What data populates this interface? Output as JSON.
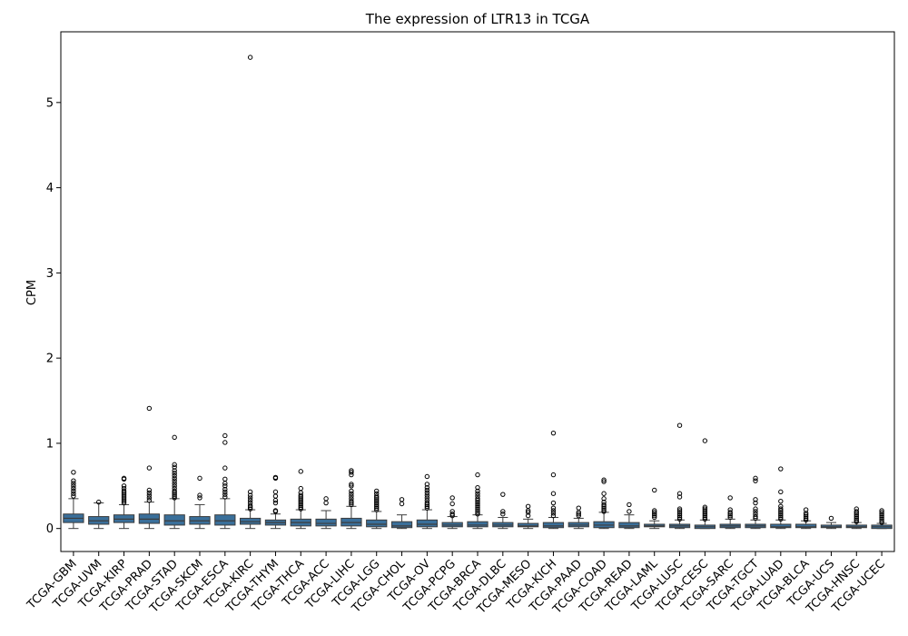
{
  "chart_data": {
    "type": "box",
    "title": "The expression of LTR13 in TCGA",
    "xlabel": "",
    "ylabel": "CPM",
    "ylim": [
      -0.27,
      5.83
    ],
    "yticks": [
      0,
      1,
      2,
      3,
      4,
      5
    ],
    "grid": false,
    "colors": {
      "box_fill": "#3a6f9a",
      "box_edge": "#3d3d3d",
      "outlier": "#000000"
    },
    "categories": [
      "TCGA-GBM",
      "TCGA-UVM",
      "TCGA-KIRP",
      "TCGA-PRAD",
      "TCGA-STAD",
      "TCGA-SKCM",
      "TCGA-ESCA",
      "TCGA-KIRC",
      "TCGA-THYM",
      "TCGA-THCA",
      "TCGA-ACC",
      "TCGA-LIHC",
      "TCGA-LGG",
      "TCGA-CHOL",
      "TCGA-OV",
      "TCGA-PCPG",
      "TCGA-BRCA",
      "TCGA-DLBC",
      "TCGA-MESO",
      "TCGA-KICH",
      "TCGA-PAAD",
      "TCGA-COAD",
      "TCGA-READ",
      "TCGA-LAML",
      "TCGA-LUSC",
      "TCGA-CESC",
      "TCGA-SARC",
      "TCGA-TGCT",
      "TCGA-LUAD",
      "TCGA-BLCA",
      "TCGA-UCS",
      "TCGA-HNSC",
      "TCGA-UCEC"
    ],
    "boxes": [
      {
        "whisker_low": 0.0,
        "q1": 0.07,
        "median": 0.12,
        "q3": 0.17,
        "whisker_high": 0.35,
        "outliers": [
          0.38,
          0.41,
          0.44,
          0.47,
          0.5,
          0.53,
          0.56,
          0.66
        ]
      },
      {
        "whisker_low": 0.0,
        "q1": 0.05,
        "median": 0.09,
        "q3": 0.14,
        "whisker_high": 0.3,
        "outliers": [
          0.31
        ]
      },
      {
        "whisker_low": 0.0,
        "q1": 0.07,
        "median": 0.11,
        "q3": 0.16,
        "whisker_high": 0.28,
        "outliers": [
          0.3,
          0.32,
          0.34,
          0.36,
          0.38,
          0.4,
          0.42,
          0.44,
          0.47,
          0.5,
          0.58,
          0.59
        ]
      },
      {
        "whisker_low": 0.0,
        "q1": 0.06,
        "median": 0.11,
        "q3": 0.17,
        "whisker_high": 0.31,
        "outliers": [
          0.33,
          0.36,
          0.39,
          0.42,
          0.45,
          0.71,
          1.41
        ]
      },
      {
        "whisker_low": 0.0,
        "q1": 0.04,
        "median": 0.09,
        "q3": 0.16,
        "whisker_high": 0.35,
        "outliers": [
          0.36,
          0.38,
          0.4,
          0.42,
          0.44,
          0.47,
          0.5,
          0.53,
          0.56,
          0.59,
          0.62,
          0.65,
          0.68,
          0.72,
          0.75,
          1.07
        ]
      },
      {
        "whisker_low": 0.0,
        "q1": 0.05,
        "median": 0.09,
        "q3": 0.14,
        "whisker_high": 0.28,
        "outliers": [
          0.36,
          0.39,
          0.59
        ]
      },
      {
        "whisker_low": 0.0,
        "q1": 0.04,
        "median": 0.09,
        "q3": 0.16,
        "whisker_high": 0.35,
        "outliers": [
          0.37,
          0.4,
          0.43,
          0.46,
          0.5,
          0.53,
          0.58,
          0.71,
          1.01,
          1.09
        ]
      },
      {
        "whisker_low": 0.0,
        "q1": 0.05,
        "median": 0.08,
        "q3": 0.12,
        "whisker_high": 0.22,
        "outliers": [
          0.23,
          0.25,
          0.27,
          0.3,
          0.33,
          0.36,
          0.39,
          0.43,
          5.53
        ]
      },
      {
        "whisker_low": 0.0,
        "q1": 0.04,
        "median": 0.07,
        "q3": 0.1,
        "whisker_high": 0.17,
        "outliers": [
          0.2,
          0.21,
          0.3,
          0.33,
          0.38,
          0.43,
          0.59,
          0.6
        ]
      },
      {
        "whisker_low": 0.0,
        "q1": 0.03,
        "median": 0.07,
        "q3": 0.11,
        "whisker_high": 0.22,
        "outliers": [
          0.23,
          0.25,
          0.27,
          0.29,
          0.31,
          0.33,
          0.35,
          0.37,
          0.39,
          0.42,
          0.47,
          0.67
        ]
      },
      {
        "whisker_low": 0.0,
        "q1": 0.03,
        "median": 0.06,
        "q3": 0.11,
        "whisker_high": 0.21,
        "outliers": [
          0.3,
          0.35
        ]
      },
      {
        "whisker_low": 0.0,
        "q1": 0.03,
        "median": 0.07,
        "q3": 0.12,
        "whisker_high": 0.26,
        "outliers": [
          0.28,
          0.3,
          0.32,
          0.35,
          0.38,
          0.41,
          0.44,
          0.5,
          0.52,
          0.63,
          0.66,
          0.68
        ]
      },
      {
        "whisker_low": 0.0,
        "q1": 0.02,
        "median": 0.05,
        "q3": 0.1,
        "whisker_high": 0.2,
        "outliers": [
          0.22,
          0.24,
          0.26,
          0.28,
          0.3,
          0.32,
          0.34,
          0.36,
          0.38,
          0.41,
          0.44
        ]
      },
      {
        "whisker_low": 0.0,
        "q1": 0.01,
        "median": 0.03,
        "q3": 0.08,
        "whisker_high": 0.16,
        "outliers": [
          0.29,
          0.34
        ]
      },
      {
        "whisker_low": 0.0,
        "q1": 0.02,
        "median": 0.05,
        "q3": 0.1,
        "whisker_high": 0.22,
        "outliers": [
          0.24,
          0.26,
          0.28,
          0.3,
          0.33,
          0.36,
          0.39,
          0.42,
          0.45,
          0.48,
          0.52,
          0.61
        ]
      },
      {
        "whisker_low": 0.0,
        "q1": 0.02,
        "median": 0.04,
        "q3": 0.07,
        "whisker_high": 0.14,
        "outliers": [
          0.15,
          0.17,
          0.2,
          0.29,
          0.36
        ]
      },
      {
        "whisker_low": 0.0,
        "q1": 0.02,
        "median": 0.04,
        "q3": 0.08,
        "whisker_high": 0.16,
        "outliers": [
          0.17,
          0.19,
          0.21,
          0.23,
          0.25,
          0.27,
          0.29,
          0.31,
          0.33,
          0.35,
          0.38,
          0.41,
          0.44,
          0.48,
          0.63
        ]
      },
      {
        "whisker_low": 0.0,
        "q1": 0.02,
        "median": 0.04,
        "q3": 0.07,
        "whisker_high": 0.13,
        "outliers": [
          0.17,
          0.2,
          0.4
        ]
      },
      {
        "whisker_low": 0.0,
        "q1": 0.02,
        "median": 0.03,
        "q3": 0.06,
        "whisker_high": 0.11,
        "outliers": [
          0.15,
          0.19,
          0.21,
          0.26
        ]
      },
      {
        "whisker_low": 0.0,
        "q1": 0.01,
        "median": 0.03,
        "q3": 0.07,
        "whisker_high": 0.13,
        "outliers": [
          0.15,
          0.18,
          0.21,
          0.24,
          0.3,
          0.41,
          0.63,
          1.12
        ]
      },
      {
        "whisker_low": 0.0,
        "q1": 0.02,
        "median": 0.04,
        "q3": 0.07,
        "whisker_high": 0.12,
        "outliers": [
          0.15,
          0.17,
          0.19,
          0.24
        ]
      },
      {
        "whisker_low": 0.0,
        "q1": 0.01,
        "median": 0.04,
        "q3": 0.08,
        "whisker_high": 0.19,
        "outliers": [
          0.2,
          0.22,
          0.24,
          0.26,
          0.28,
          0.31,
          0.35,
          0.41,
          0.55,
          0.57
        ]
      },
      {
        "whisker_low": 0.0,
        "q1": 0.01,
        "median": 0.03,
        "q3": 0.07,
        "whisker_high": 0.16,
        "outliers": [
          0.2,
          0.28
        ]
      },
      {
        "whisker_low": 0.0,
        "q1": 0.02,
        "median": 0.03,
        "q3": 0.05,
        "whisker_high": 0.09,
        "outliers": [
          0.13,
          0.15,
          0.17,
          0.19,
          0.21,
          0.45
        ]
      },
      {
        "whisker_low": 0.0,
        "q1": 0.01,
        "median": 0.03,
        "q3": 0.05,
        "whisker_high": 0.1,
        "outliers": [
          0.11,
          0.13,
          0.15,
          0.17,
          0.19,
          0.21,
          0.23,
          0.37,
          0.41,
          1.21
        ]
      },
      {
        "whisker_low": 0.0,
        "q1": 0.0,
        "median": 0.02,
        "q3": 0.04,
        "whisker_high": 0.1,
        "outliers": [
          0.11,
          0.13,
          0.15,
          0.17,
          0.19,
          0.21,
          0.23,
          0.25,
          1.03
        ]
      },
      {
        "whisker_low": 0.0,
        "q1": 0.01,
        "median": 0.03,
        "q3": 0.05,
        "whisker_high": 0.11,
        "outliers": [
          0.13,
          0.15,
          0.17,
          0.19,
          0.22,
          0.36
        ]
      },
      {
        "whisker_low": 0.0,
        "q1": 0.01,
        "median": 0.03,
        "q3": 0.05,
        "whisker_high": 0.1,
        "outliers": [
          0.12,
          0.14,
          0.17,
          0.2,
          0.23,
          0.3,
          0.34,
          0.56,
          0.59
        ]
      },
      {
        "whisker_low": 0.0,
        "q1": 0.01,
        "median": 0.02,
        "q3": 0.05,
        "whisker_high": 0.1,
        "outliers": [
          0.11,
          0.13,
          0.15,
          0.17,
          0.19,
          0.21,
          0.23,
          0.26,
          0.32,
          0.43,
          0.7
        ]
      },
      {
        "whisker_low": 0.0,
        "q1": 0.01,
        "median": 0.02,
        "q3": 0.05,
        "whisker_high": 0.09,
        "outliers": [
          0.1,
          0.12,
          0.14,
          0.16,
          0.18,
          0.22
        ]
      },
      {
        "whisker_low": 0.0,
        "q1": 0.01,
        "median": 0.02,
        "q3": 0.04,
        "whisker_high": 0.07,
        "outliers": [
          0.12
        ]
      },
      {
        "whisker_low": 0.0,
        "q1": 0.01,
        "median": 0.02,
        "q3": 0.04,
        "whisker_high": 0.07,
        "outliers": [
          0.08,
          0.1,
          0.12,
          0.14,
          0.16,
          0.18,
          0.2,
          0.23
        ]
      },
      {
        "whisker_low": 0.0,
        "q1": 0.0,
        "median": 0.02,
        "q3": 0.04,
        "whisker_high": 0.06,
        "outliers": [
          0.07,
          0.09,
          0.11,
          0.13,
          0.15,
          0.17,
          0.19,
          0.21
        ]
      }
    ]
  }
}
